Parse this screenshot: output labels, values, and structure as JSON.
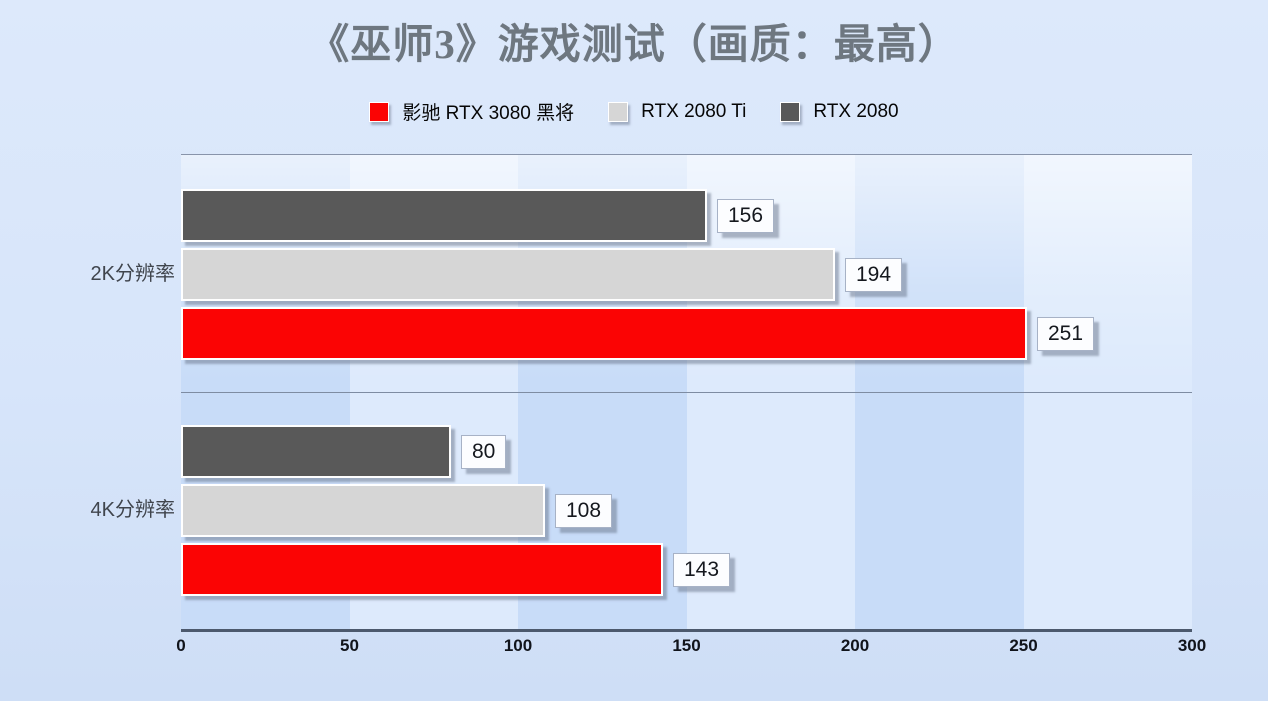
{
  "title": "《巫师3》游戏测试（画质：最高）",
  "legend": {
    "items": [
      {
        "label": "影驰 RTX 3080 黑将",
        "color": "#fb0404"
      },
      {
        "label": "RTX 2080 Ti",
        "color": "#d6d6d6"
      },
      {
        "label": "RTX 2080",
        "color": "#595959"
      }
    ]
  },
  "chart_data": {
    "type": "bar",
    "orientation": "horizontal",
    "title": "《巫师3》游戏测试（画质：最高）",
    "categories": [
      "2K分辨率",
      "4K分辨率"
    ],
    "series": [
      {
        "name": "影驰 RTX 3080 黑将",
        "color": "#fb0404",
        "values": [
          251,
          143
        ]
      },
      {
        "name": "RTX 2080 Ti",
        "color": "#d6d6d6",
        "values": [
          194,
          108
        ]
      },
      {
        "name": "RTX 2080",
        "color": "#595959",
        "values": [
          156,
          80
        ]
      }
    ],
    "xlabel": "",
    "ylabel": "",
    "xlim": [
      0,
      300
    ],
    "xticks": [
      0,
      50,
      100,
      150,
      200,
      250,
      300
    ],
    "grid": "vertical-bands",
    "legend_position": "top",
    "data_labels": true
  },
  "colors": {
    "background_top": "#dde9fb",
    "background_bottom": "#cedef6",
    "band_dark": "#c8dcf8",
    "band_light": "#ddeafc",
    "gridline": "#8894aa",
    "axis_line": "#4c596d",
    "title_text": "#6e7780",
    "value_box_bg": "#fcfdff",
    "value_box_border": "#a7b2c6"
  }
}
